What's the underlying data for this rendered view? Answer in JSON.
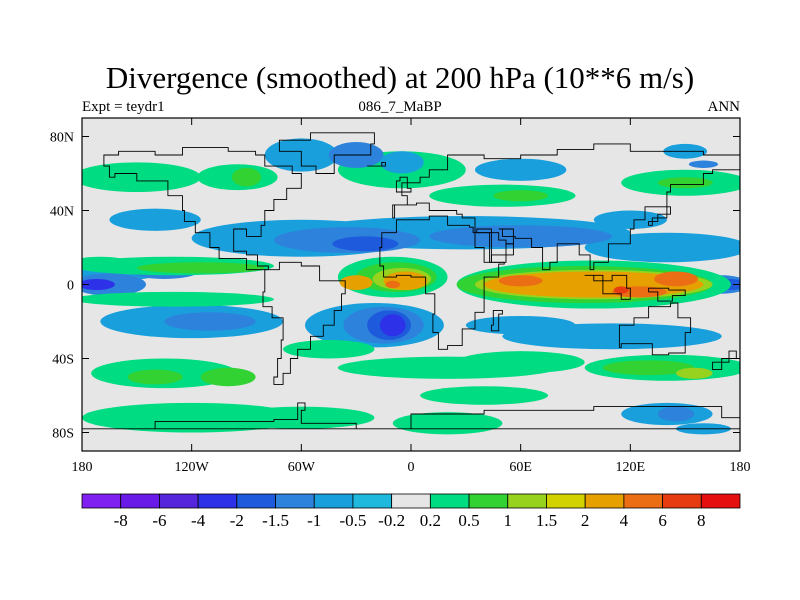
{
  "header": {
    "title": "Divergence (smoothed) at 200 hPa (10**6 m/s)",
    "left_label": "Expt = teydr1",
    "center_label": "086_7_MaBP",
    "right_label": "ANN"
  },
  "axes": {
    "lon_ticks": [
      {
        "lon": -180,
        "label": "180"
      },
      {
        "lon": -120,
        "label": "120W"
      },
      {
        "lon": -60,
        "label": "60W"
      },
      {
        "lon": 0,
        "label": "0"
      },
      {
        "lon": 60,
        "label": "60E"
      },
      {
        "lon": 120,
        "label": "120E"
      },
      {
        "lon": 180,
        "label": "180"
      }
    ],
    "lat_ticks": [
      {
        "lat": 80,
        "label": "80N"
      },
      {
        "lat": 40,
        "label": "40N"
      },
      {
        "lat": 0,
        "label": "0"
      },
      {
        "lat": -40,
        "label": "40S"
      },
      {
        "lat": -80,
        "label": "80S"
      }
    ],
    "lon_range": [
      -180,
      180
    ],
    "lat_range": [
      -90,
      90
    ]
  },
  "colorbar": {
    "colors": [
      "#7f1ff0",
      "#6a1ae6",
      "#5526dc",
      "#2d32e8",
      "#1e5adc",
      "#2d82dc",
      "#19a0dc",
      "#1eb9dc",
      "#e6e6e6",
      "#00dc82",
      "#32d232",
      "#96d21e",
      "#d2d200",
      "#e6a000",
      "#eb6e14",
      "#e63c0f",
      "#e60f0f"
    ],
    "labels": [
      "-8",
      "-6",
      "-4",
      "-2",
      "-1.5",
      "-1",
      "-0.5",
      "-0.2",
      "0.2",
      "0.5",
      "1",
      "1.5",
      "2",
      "4",
      "6",
      "8"
    ]
  },
  "field_colors": {
    "background": "#e6e6e6",
    "weak_pos": "#00dc82",
    "pos": "#32d232",
    "strong_pos": "#96d21e",
    "warm1": "#e6a000",
    "warm2": "#eb6e14",
    "warm3": "#e63c0f",
    "weak_neg": "#19a0dc",
    "neg": "#2d82dc",
    "strong_neg": "#1e5adc",
    "stronger_neg": "#2d32e8"
  }
}
